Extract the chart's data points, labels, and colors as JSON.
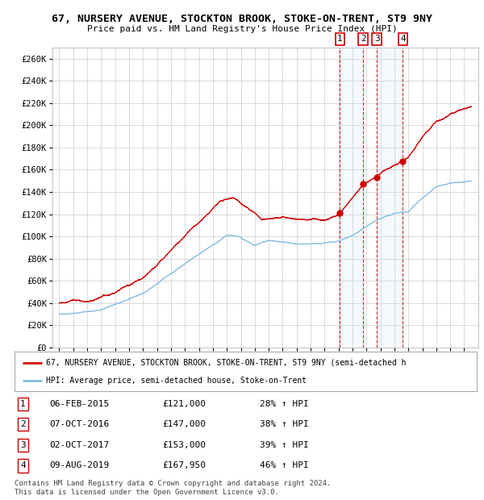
{
  "title_line1": "67, NURSERY AVENUE, STOCKTON BROOK, STOKE-ON-TRENT, ST9 9NY",
  "title_line2": "Price paid vs. HM Land Registry's House Price Index (HPI)",
  "ylabel_ticks": [
    "£0",
    "£20K",
    "£40K",
    "£60K",
    "£80K",
    "£100K",
    "£120K",
    "£140K",
    "£160K",
    "£180K",
    "£200K",
    "£220K",
    "£240K",
    "£260K"
  ],
  "ytick_values": [
    0,
    20000,
    40000,
    60000,
    80000,
    100000,
    120000,
    140000,
    160000,
    180000,
    200000,
    220000,
    240000,
    260000
  ],
  "xlim_start": 1994.5,
  "xlim_end": 2025.0,
  "ylim_min": 0,
  "ylim_max": 270000,
  "sale_dates": [
    2015.096,
    2016.763,
    2017.751,
    2019.601
  ],
  "sale_prices": [
    121000,
    147000,
    153000,
    167950
  ],
  "sale_labels": [
    "1",
    "2",
    "3",
    "4"
  ],
  "vline_color": "#cc0000",
  "vspan_color": "#d0e4f7",
  "dot_color": "#cc0000",
  "hpi_line_color": "#7fbfdf",
  "price_line_color": "#cc0000",
  "legend_red_label": "67, NURSERY AVENUE, STOCKTON BROOK, STOKE-ON-TRENT, ST9 9NY (semi-detached h",
  "legend_blue_label": "HPI: Average price, semi-detached house, Stoke-on-Trent",
  "table_rows": [
    [
      "1",
      "06-FEB-2015",
      "£121,000",
      "28% ↑ HPI"
    ],
    [
      "2",
      "07-OCT-2016",
      "£147,000",
      "38% ↑ HPI"
    ],
    [
      "3",
      "02-OCT-2017",
      "£153,000",
      "39% ↑ HPI"
    ],
    [
      "4",
      "09-AUG-2019",
      "£167,950",
      "46% ↑ HPI"
    ]
  ],
  "footer_text": "Contains HM Land Registry data © Crown copyright and database right 2024.\nThis data is licensed under the Open Government Licence v3.0.",
  "background_color": "#ffffff",
  "plot_background_color": "#ffffff",
  "grid_color": "#cccccc"
}
